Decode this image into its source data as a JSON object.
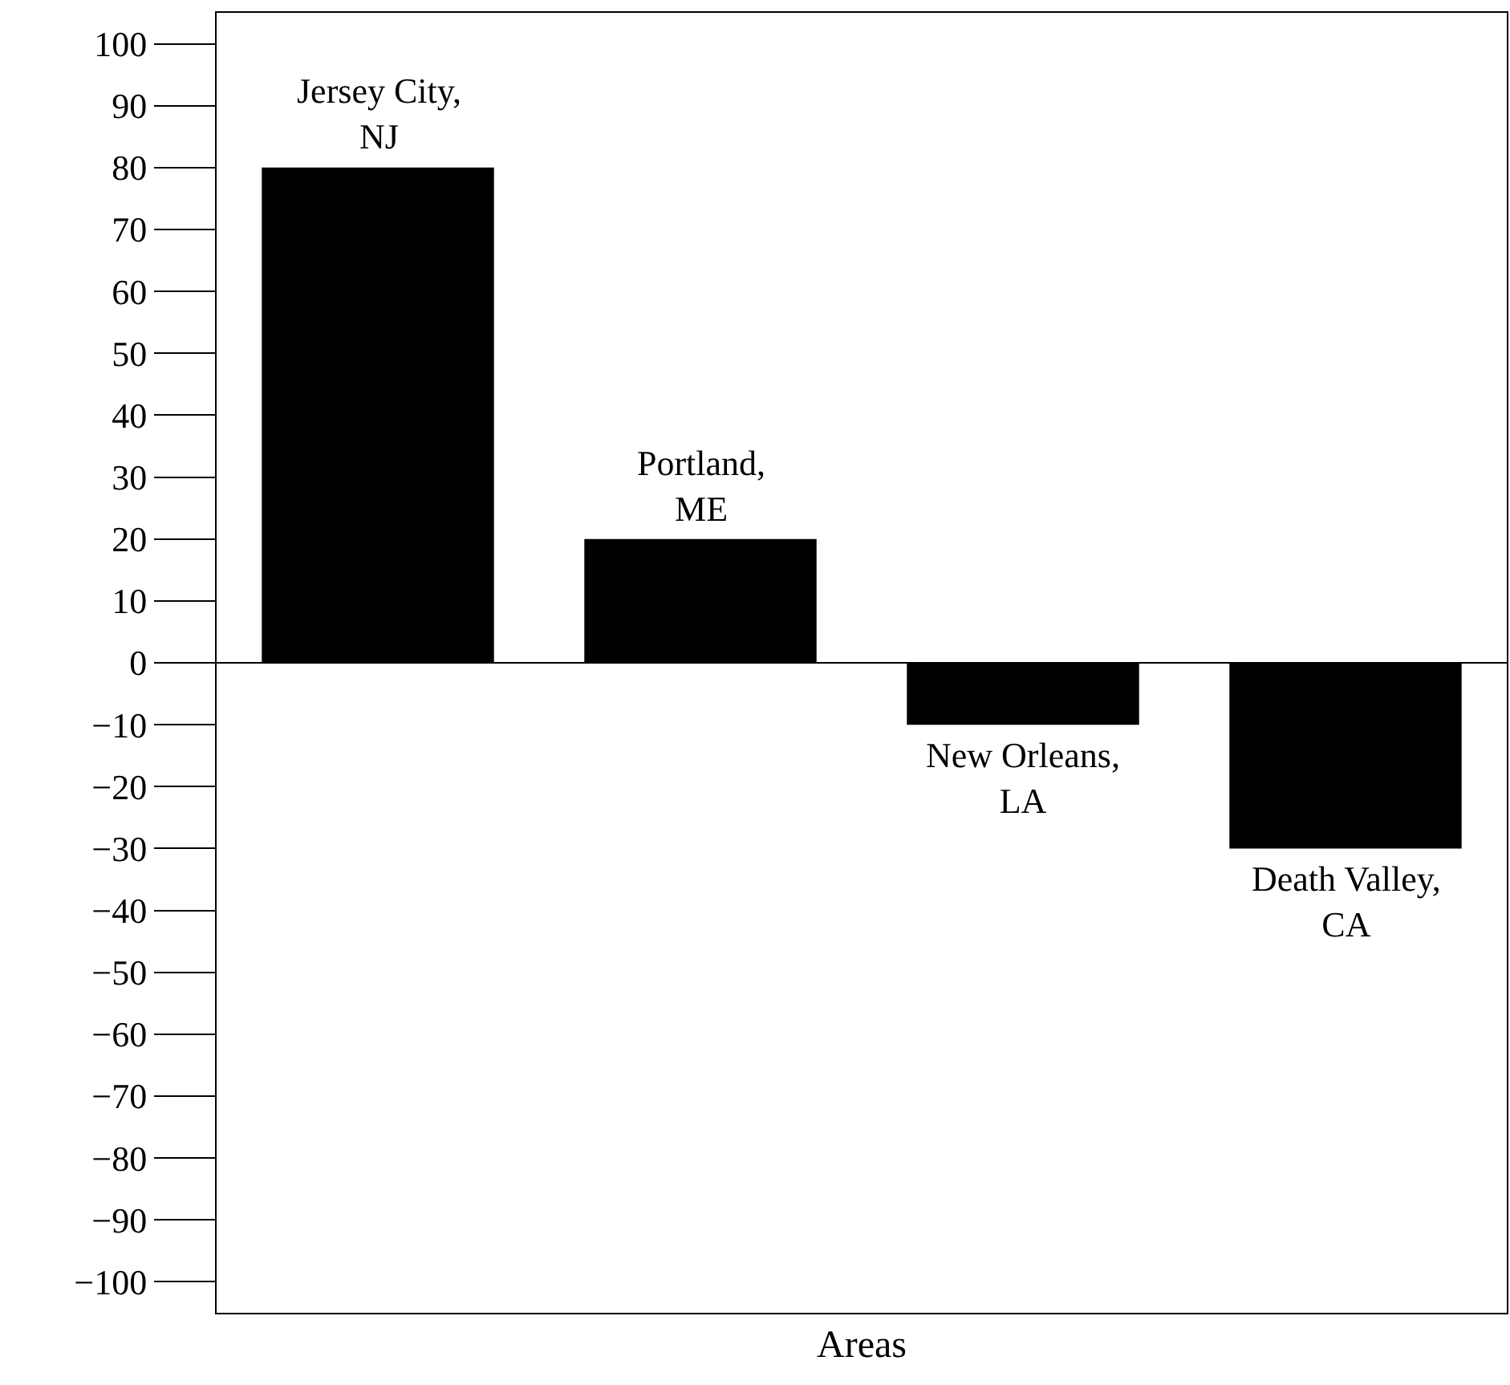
{
  "chart_data": {
    "type": "bar",
    "xlabel": "Areas",
    "categories": [
      "Jersey City,\nNJ",
      "Portland,\nME",
      "New Orleans,\nLA",
      "Death Valley,\nCA"
    ],
    "values": [
      80,
      20,
      -10,
      -30
    ],
    "color": "#000000",
    "ylim": [
      -105,
      105
    ],
    "yticks": [
      100,
      90,
      80,
      70,
      60,
      50,
      40,
      30,
      20,
      10,
      0,
      {
        "value": -10,
        "label": "−10"
      },
      {
        "value": -20,
        "label": "−20"
      },
      {
        "value": -30,
        "label": "−30"
      },
      {
        "value": -40,
        "label": "−40"
      },
      {
        "value": -50,
        "label": "−50"
      },
      {
        "value": -60,
        "label": "−60"
      },
      {
        "value": -70,
        "label": "−70"
      },
      {
        "value": -80,
        "label": "−80"
      },
      {
        "value": -90,
        "label": "−90"
      },
      {
        "value": -100,
        "label": "−100"
      }
    ],
    "ref_lines": [
      {
        "axis": "y",
        "value": 0,
        "color": "#000000"
      }
    ],
    "grid": false,
    "legend": false,
    "tick_labels": "y"
  }
}
